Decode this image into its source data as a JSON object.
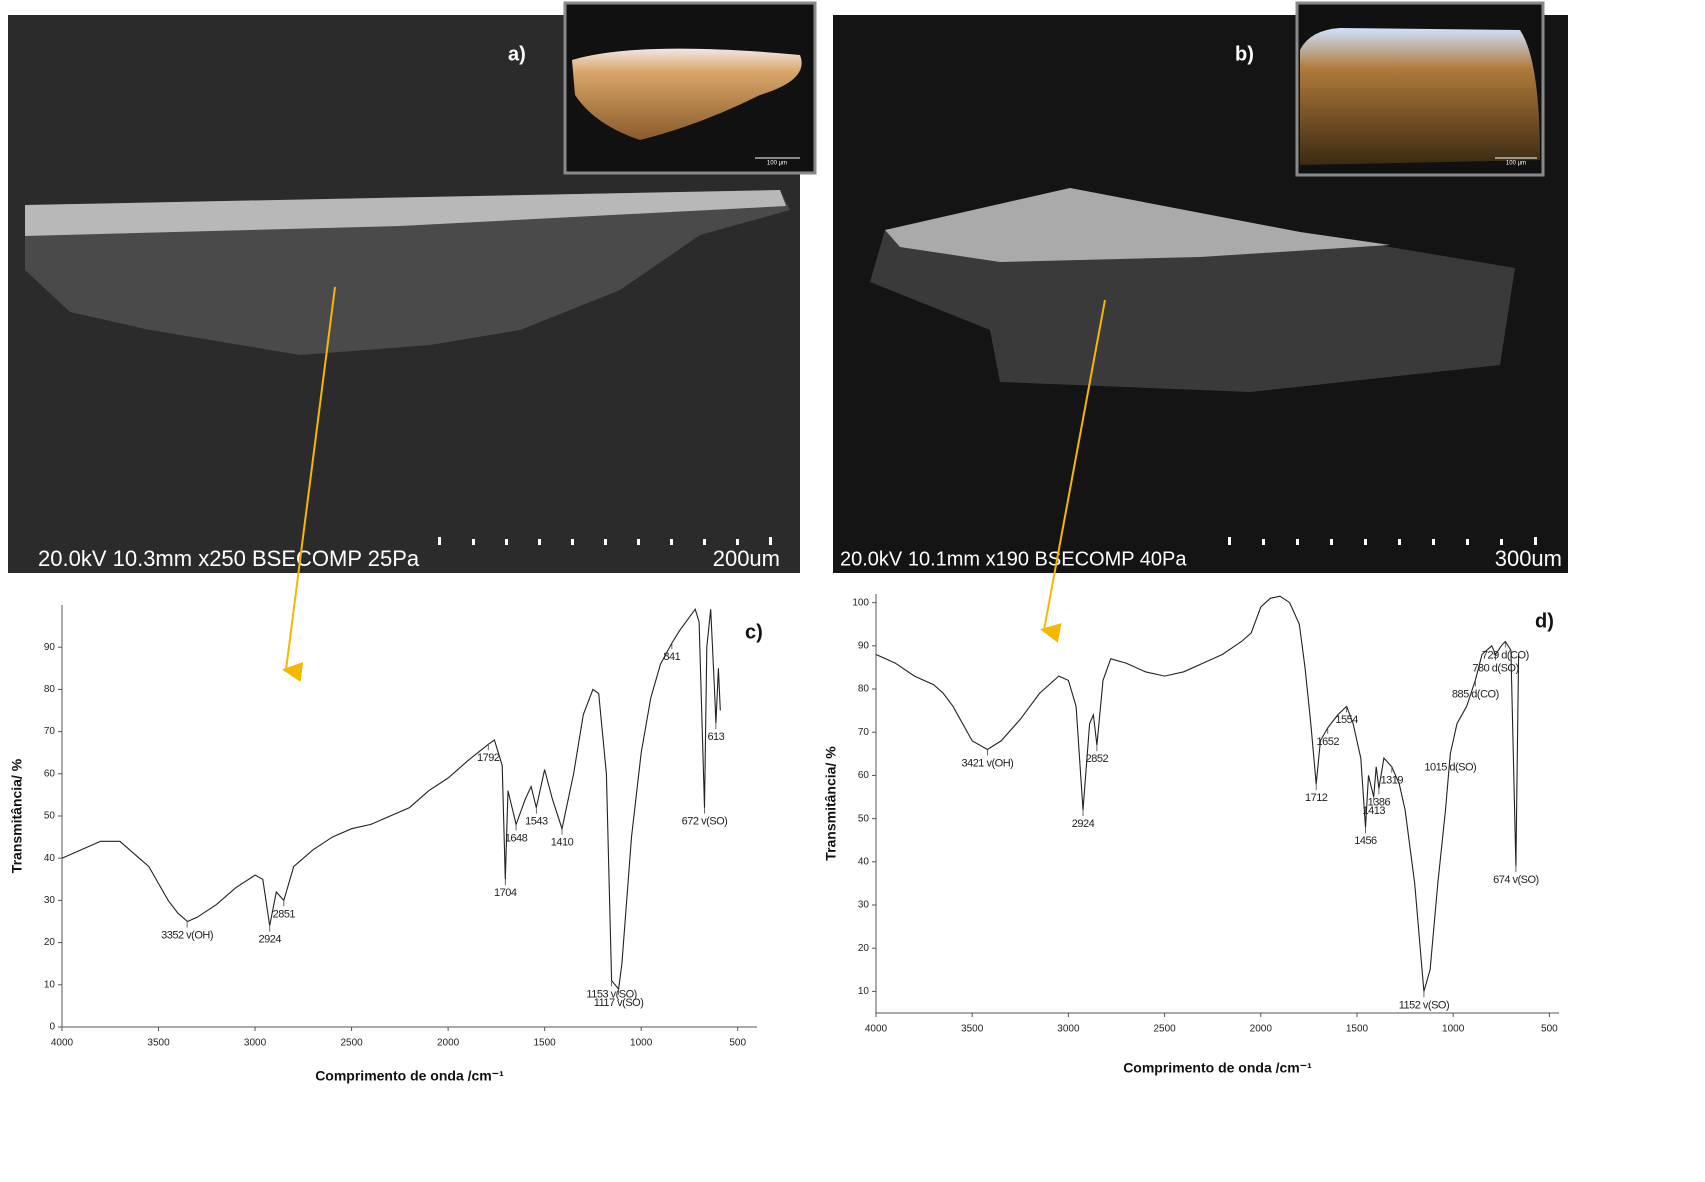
{
  "panels": [
    {
      "label": "a)",
      "caption": "20.0kV 10.3mm x250 BSECOMP 25Pa",
      "scale": "200um",
      "inset_scale": "100 µm"
    },
    {
      "label": "b)",
      "caption": "20.0kV 10.1mm x190 BSECOMP 40Pa",
      "scale": "300um",
      "inset_scale": "100 µm"
    }
  ],
  "chart_data": [
    {
      "type": "line",
      "label": "c)",
      "x_label": "Comprimento de onda /cm⁻¹",
      "y_label": "Transmitância/ %",
      "color": "#222222",
      "xlim": [
        4000,
        400
      ],
      "xticks": [
        4000,
        3500,
        3000,
        2500,
        2000,
        1500,
        1000,
        500
      ],
      "ylim": [
        0,
        100
      ],
      "yticks": [
        0,
        10,
        20,
        30,
        40,
        50,
        60,
        70,
        80,
        90
      ],
      "x": [
        4000,
        3900,
        3800,
        3700,
        3650,
        3600,
        3550,
        3500,
        3450,
        3400,
        3350,
        3300,
        3200,
        3100,
        3000,
        2960,
        2924,
        2890,
        2851,
        2800,
        2700,
        2600,
        2500,
        2400,
        2300,
        2200,
        2100,
        2000,
        1900,
        1792,
        1760,
        1720,
        1704,
        1690,
        1648,
        1600,
        1570,
        1543,
        1500,
        1460,
        1410,
        1350,
        1300,
        1250,
        1220,
        1180,
        1153,
        1117,
        1100,
        1050,
        1000,
        950,
        900,
        841,
        800,
        720,
        700,
        672,
        660,
        640,
        620,
        613,
        600,
        590
      ],
      "values": [
        40,
        42,
        44,
        44,
        42,
        40,
        38,
        34,
        30,
        27,
        25,
        26,
        29,
        33,
        36,
        35,
        24,
        32,
        30,
        38,
        42,
        45,
        47,
        48,
        50,
        52,
        56,
        59,
        63,
        67,
        68,
        62,
        35,
        56,
        48,
        54,
        57,
        52,
        61,
        54,
        47,
        60,
        74,
        80,
        79,
        60,
        11,
        9,
        15,
        45,
        65,
        78,
        86,
        91,
        94,
        99,
        96,
        52,
        90,
        99,
        80,
        72,
        85,
        75
      ],
      "annotations": [
        {
          "text": "3352 v(OH)",
          "x": 3352,
          "y": 25
        },
        {
          "text": "2924",
          "x": 2924,
          "y": 24
        },
        {
          "text": "2851",
          "x": 2851,
          "y": 30
        },
        {
          "text": "1792",
          "x": 1792,
          "y": 67
        },
        {
          "text": "1704",
          "x": 1704,
          "y": 35
        },
        {
          "text": "1648",
          "x": 1648,
          "y": 48
        },
        {
          "text": "1543",
          "x": 1543,
          "y": 52
        },
        {
          "text": "1410",
          "x": 1410,
          "y": 47
        },
        {
          "text": "1153 v(SO)",
          "x": 1153,
          "y": 11
        },
        {
          "text": "1117 v(SO)",
          "x": 1117,
          "y": 9
        },
        {
          "text": "841",
          "x": 841,
          "y": 91
        },
        {
          "text": "672 v(SO)",
          "x": 672,
          "y": 52
        },
        {
          "text": "613",
          "x": 613,
          "y": 72
        }
      ]
    },
    {
      "type": "line",
      "label": "d)",
      "x_label": "Comprimento de onda /cm⁻¹",
      "y_label": "Transmitância/ %",
      "color": "#222222",
      "xlim": [
        4000,
        450
      ],
      "xticks": [
        4000,
        3500,
        3000,
        2500,
        2000,
        1500,
        1000,
        500
      ],
      "ylim": [
        5,
        102
      ],
      "yticks": [
        10,
        20,
        30,
        40,
        50,
        60,
        70,
        80,
        90,
        100
      ],
      "x": [
        4000,
        3900,
        3800,
        3700,
        3650,
        3600,
        3550,
        3500,
        3421,
        3350,
        3250,
        3150,
        3050,
        3000,
        2960,
        2924,
        2890,
        2870,
        2852,
        2820,
        2780,
        2700,
        2600,
        2500,
        2400,
        2300,
        2200,
        2100,
        2050,
        2000,
        1950,
        1900,
        1850,
        1800,
        1770,
        1740,
        1712,
        1690,
        1652,
        1600,
        1554,
        1520,
        1480,
        1456,
        1440,
        1413,
        1400,
        1386,
        1360,
        1319,
        1280,
        1250,
        1200,
        1152,
        1120,
        1080,
        1040,
        1015,
        980,
        930,
        885,
        850,
        800,
        780,
        750,
        729,
        700,
        674,
        660
      ],
      "values": [
        88,
        86,
        83,
        81,
        79,
        76,
        72,
        68,
        66,
        68,
        73,
        79,
        83,
        82,
        76,
        52,
        72,
        74,
        67,
        82,
        87,
        86,
        84,
        83,
        84,
        86,
        88,
        91,
        93,
        99,
        101,
        101.5,
        100,
        95,
        85,
        72,
        58,
        68,
        71,
        74,
        76,
        72,
        64,
        48,
        60,
        55,
        62,
        57,
        64,
        62,
        58,
        52,
        35,
        10,
        15,
        35,
        52,
        65,
        72,
        76,
        82,
        88,
        90,
        88,
        90,
        91,
        89,
        39,
        88
      ],
      "annotations": [
        {
          "text": "3421 v(OH)",
          "x": 3421,
          "y": 66
        },
        {
          "text": "2924",
          "x": 2924,
          "y": 52
        },
        {
          "text": "2852",
          "x": 2852,
          "y": 67
        },
        {
          "text": "1712",
          "x": 1712,
          "y": 58
        },
        {
          "text": "1652",
          "x": 1652,
          "y": 71
        },
        {
          "text": "1554",
          "x": 1554,
          "y": 76
        },
        {
          "text": "1456",
          "x": 1456,
          "y": 48
        },
        {
          "text": "1413",
          "x": 1413,
          "y": 55
        },
        {
          "text": "1386",
          "x": 1386,
          "y": 57
        },
        {
          "text": "1319",
          "x": 1319,
          "y": 62
        },
        {
          "text": "1152 v(SO)",
          "x": 1152,
          "y": 10
        },
        {
          "text": "1015 d(SO)",
          "x": 1015,
          "y": 65
        },
        {
          "text": "885 d(CO)",
          "x": 885,
          "y": 82
        },
        {
          "text": "780 d(SO)",
          "x": 780,
          "y": 88
        },
        {
          "text": "729 d(CO)",
          "x": 729,
          "y": 91
        },
        {
          "text": "674 v(SO)",
          "x": 674,
          "y": 39
        }
      ]
    }
  ]
}
